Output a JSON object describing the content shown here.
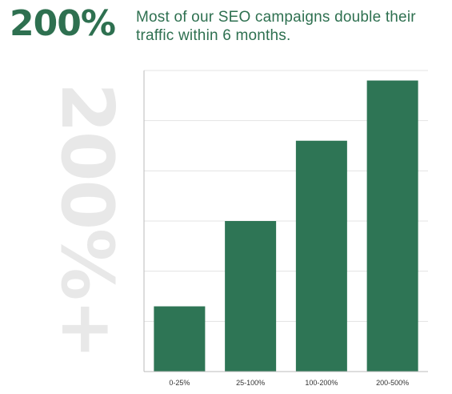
{
  "header": {
    "stat": "200%",
    "headline": "Most of our SEO campaigns double their traffic within 6 months."
  },
  "watermark": "200%+",
  "colors": {
    "accent": "#2e7050",
    "bar": "#2e7555",
    "watermark": "#e8e8e8",
    "grid": "#e3e3e3",
    "axis": "#bbbbbb"
  },
  "chart_data": {
    "type": "bar",
    "title": "",
    "xlabel": "",
    "ylabel": "",
    "categories": [
      "0-25%",
      "25-100%",
      "100-200%",
      "200-500%"
    ],
    "values": [
      13,
      30,
      46,
      58
    ],
    "ylim": [
      0,
      60
    ],
    "gridlines": [
      10,
      20,
      30,
      40,
      50,
      60
    ],
    "grid": true,
    "legend": "none"
  }
}
